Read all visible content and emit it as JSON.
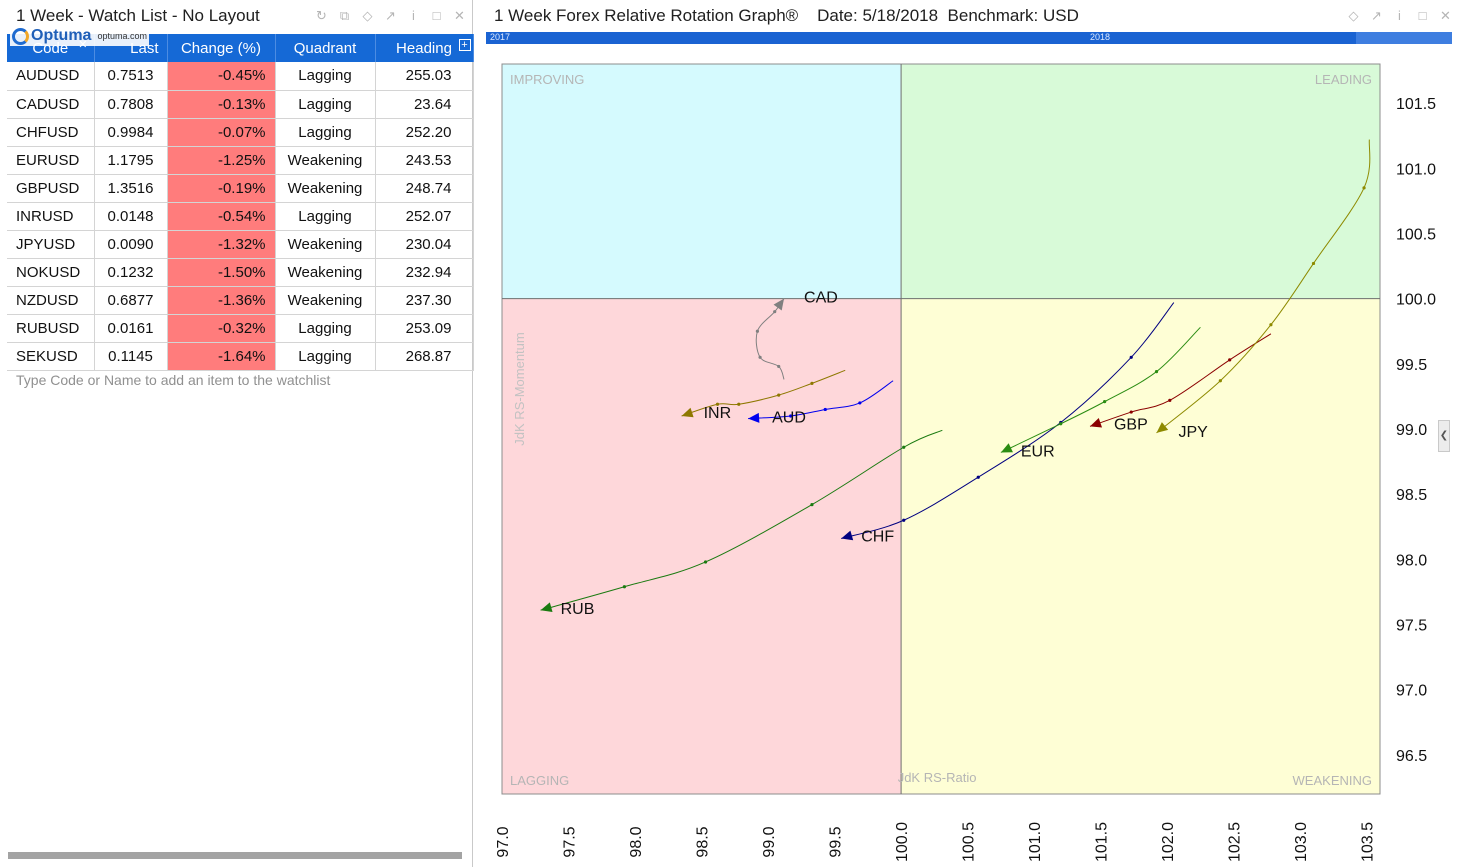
{
  "watchlist": {
    "title": "1 Week - Watch List - No Layout",
    "logo_name": "Optuma",
    "logo_url": "optuma.com",
    "columns": [
      "Code",
      "Last",
      "Change (%)",
      "Quadrant",
      "Heading"
    ],
    "rows": [
      {
        "code": "AUDUSD",
        "last": "0.7513",
        "change": "-0.45%",
        "quadrant": "Lagging",
        "heading": "255.03"
      },
      {
        "code": "CADUSD",
        "last": "0.7808",
        "change": "-0.13%",
        "quadrant": "Lagging",
        "heading": "23.64"
      },
      {
        "code": "CHFUSD",
        "last": "0.9984",
        "change": "-0.07%",
        "quadrant": "Lagging",
        "heading": "252.20"
      },
      {
        "code": "EURUSD",
        "last": "1.1795",
        "change": "-1.25%",
        "quadrant": "Weakening",
        "heading": "243.53"
      },
      {
        "code": "GBPUSD",
        "last": "1.3516",
        "change": "-0.19%",
        "quadrant": "Weakening",
        "heading": "248.74"
      },
      {
        "code": "INRUSD",
        "last": "0.0148",
        "change": "-0.54%",
        "quadrant": "Lagging",
        "heading": "252.07"
      },
      {
        "code": "JPYUSD",
        "last": "0.0090",
        "change": "-1.32%",
        "quadrant": "Weakening",
        "heading": "230.04"
      },
      {
        "code": "NOKUSD",
        "last": "0.1232",
        "change": "-1.50%",
        "quadrant": "Weakening",
        "heading": "232.94"
      },
      {
        "code": "NZDUSD",
        "last": "0.6877",
        "change": "-1.36%",
        "quadrant": "Weakening",
        "heading": "237.30"
      },
      {
        "code": "RUBUSD",
        "last": "0.0161",
        "change": "-0.32%",
        "quadrant": "Lagging",
        "heading": "253.09"
      },
      {
        "code": "SEKUSD",
        "last": "0.1145",
        "change": "-1.64%",
        "quadrant": "Lagging",
        "heading": "268.87"
      }
    ],
    "add_placeholder": "Type Code or Name to add an item to the watchlist",
    "change_cell_color": "#ff7c7c",
    "header_color": "#1569d6"
  },
  "chart_panel": {
    "title": "1 Week Forex Relative Rotation Graph®",
    "date_label": "Date: 5/18/2018",
    "benchmark_label": "Benchmark:  USD",
    "timeline": {
      "start_label": "2017",
      "mid_label": "2018"
    }
  },
  "chart_data": {
    "type": "scatter",
    "xlabel": "JdK RS-Ratio",
    "ylabel": "JdK RS-Momentum",
    "xlim": [
      97.0,
      103.6
    ],
    "ylim": [
      96.2,
      101.8
    ],
    "xticks": [
      "97.0",
      "97.5",
      "98.0",
      "98.5",
      "99.0",
      "99.5",
      "100.0",
      "100.5",
      "101.0",
      "101.5",
      "102.0",
      "102.5",
      "103.0",
      "103.5"
    ],
    "yticks": [
      "96.5",
      "97.0",
      "97.5",
      "98.0",
      "98.5",
      "99.0",
      "99.5",
      "100.0",
      "100.5",
      "101.0",
      "101.5"
    ],
    "quadrants": [
      {
        "label": "IMPROVING",
        "color": "#d5fafe"
      },
      {
        "label": "LEADING",
        "color": "#d8fad8"
      },
      {
        "label": "LAGGING",
        "color": "#fed7da"
      },
      {
        "label": "WEAKENING",
        "color": "#fefed5"
      }
    ],
    "series": [
      {
        "name": "CAD",
        "color": "#808080",
        "points": [
          [
            99.12,
            99.38
          ],
          [
            99.08,
            99.48
          ],
          [
            98.94,
            99.55
          ],
          [
            98.92,
            99.75
          ],
          [
            99.05,
            99.9
          ],
          [
            99.12,
            100.0
          ]
        ]
      },
      {
        "name": "INR",
        "color": "#8e7800",
        "points": [
          [
            99.58,
            99.45
          ],
          [
            99.33,
            99.35
          ],
          [
            99.08,
            99.26
          ],
          [
            98.78,
            99.19
          ],
          [
            98.62,
            99.19
          ],
          [
            98.35,
            99.1
          ]
        ]
      },
      {
        "name": "AUD",
        "color": "#0000ee",
        "points": [
          [
            99.94,
            99.37
          ],
          [
            99.69,
            99.2
          ],
          [
            99.43,
            99.15
          ],
          [
            99.17,
            99.1
          ],
          [
            98.85,
            99.08
          ]
        ]
      },
      {
        "name": "CHF",
        "color": "#000080",
        "points": [
          [
            102.05,
            99.97
          ],
          [
            101.73,
            99.55
          ],
          [
            101.2,
            99.05
          ],
          [
            100.58,
            98.63
          ],
          [
            100.02,
            98.3
          ],
          [
            99.55,
            98.16
          ]
        ]
      },
      {
        "name": "EUR",
        "color": "#2a8c12",
        "points": [
          [
            102.25,
            99.78
          ],
          [
            101.92,
            99.44
          ],
          [
            101.53,
            99.21
          ],
          [
            101.2,
            99.04
          ],
          [
            100.75,
            98.82
          ]
        ]
      },
      {
        "name": "GBP",
        "color": "#8b0000",
        "points": [
          [
            102.78,
            99.73
          ],
          [
            102.47,
            99.53
          ],
          [
            102.02,
            99.22
          ],
          [
            101.73,
            99.13
          ],
          [
            101.42,
            99.02
          ]
        ]
      },
      {
        "name": "JPY",
        "color": "#8e8a00",
        "points": [
          [
            103.52,
            101.22
          ],
          [
            103.48,
            100.85
          ],
          [
            103.1,
            100.27
          ],
          [
            102.78,
            99.8
          ],
          [
            102.4,
            99.37
          ],
          [
            101.92,
            98.97
          ]
        ]
      },
      {
        "name": "RUB",
        "color": "#1a7a10",
        "points": [
          [
            100.31,
            98.99
          ],
          [
            100.02,
            98.86
          ],
          [
            99.33,
            98.42
          ],
          [
            98.53,
            97.98
          ],
          [
            97.92,
            97.79
          ],
          [
            97.29,
            97.61
          ]
        ]
      }
    ]
  }
}
